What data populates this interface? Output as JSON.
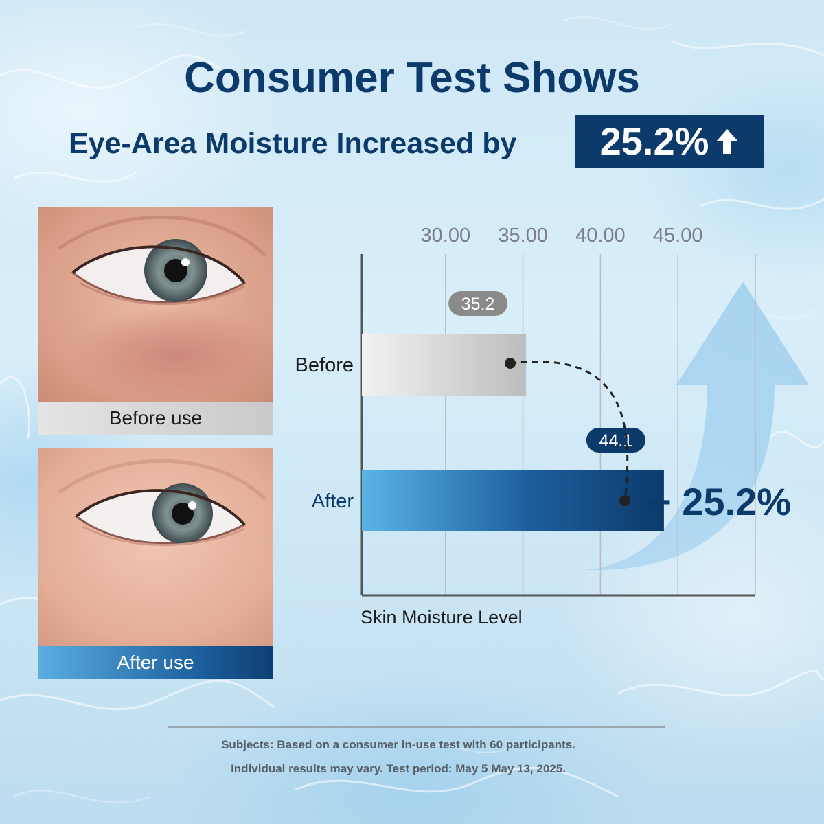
{
  "header": {
    "title": "Consumer Test Shows",
    "subtitle": "Eye-Area Moisture Increased by",
    "badge_value": "25.2%",
    "badge_icon": "arrow-up-icon"
  },
  "photos": {
    "before_caption": "Before use",
    "after_caption": "After use"
  },
  "chart_data": {
    "type": "bar",
    "orientation": "horizontal",
    "categories": [
      "Before",
      "After"
    ],
    "values": [
      35.2,
      44.1
    ],
    "value_labels": [
      "35.2",
      "44.1"
    ],
    "xlabel": "Skin Moisture Level",
    "x_ticks": [
      "30.00",
      "35.00",
      "40.00",
      "45.00"
    ],
    "x_tick_values": [
      30,
      35,
      40,
      45
    ],
    "xlim": [
      24.6,
      50
    ],
    "grid": true,
    "axis_position": "top",
    "change_label": "+ 25.2%",
    "colors": {
      "before_bar": "#c9c9c9",
      "after_bar_start": "#5ab4e6",
      "after_bar_end": "#0c3a6b",
      "before_label_bg": "#8a8a8a",
      "after_label_bg": "#0c3a6b",
      "big_arrow": "#a9d4f0",
      "change_text": "#0c3a6b"
    }
  },
  "footer": {
    "line1": "Subjects: Based on a consumer in-use test with 60 participants.",
    "line2": "Individual results may vary.  Test period: May 5 May 13, 2025."
  }
}
